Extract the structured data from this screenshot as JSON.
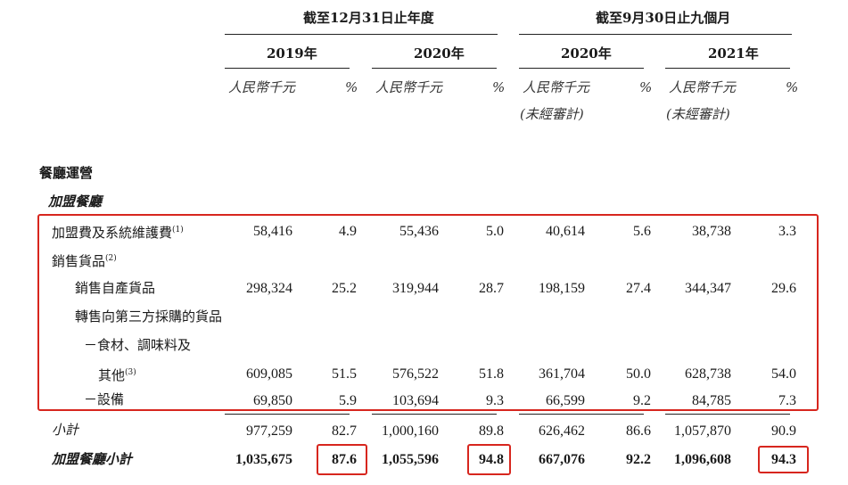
{
  "header": {
    "group1": "截至12月31日止年度",
    "group2": "截至9月30日止九個月",
    "years": [
      "2019年",
      "2020年",
      "2020年",
      "2021年"
    ],
    "unit_rmb": "人民幣千元",
    "unit_pct": "%",
    "unaudited": "(未經審計)"
  },
  "section": {
    "title": "餐廳運營",
    "subtitle": "加盟餐廳"
  },
  "rows": [
    {
      "label": "加盟費及系統維護費",
      "note": "(1)",
      "values": [
        "58,416",
        "4.9",
        "55,436",
        "5.0",
        "40,614",
        "5.6",
        "38,738",
        "3.3"
      ]
    },
    {
      "label": "銷售貨品",
      "note": "(2)",
      "values": []
    },
    {
      "label": "銷售自產貨品",
      "note": "",
      "values": [
        "298,324",
        "25.2",
        "319,944",
        "28.7",
        "198,159",
        "27.4",
        "344,347",
        "29.6"
      ]
    },
    {
      "label": "轉售向第三方採購的貨品",
      "note": "",
      "values": []
    },
    {
      "label": "－食材、調味料及",
      "note": "",
      "values": []
    },
    {
      "label": "其他",
      "note": "(3)",
      "values": [
        "609,085",
        "51.5",
        "576,522",
        "51.8",
        "361,704",
        "50.0",
        "628,738",
        "54.0"
      ]
    },
    {
      "label": "－設備",
      "note": "",
      "values": [
        "69,850",
        "5.9",
        "103,694",
        "9.3",
        "66,599",
        "9.2",
        "84,785",
        "7.3"
      ]
    },
    {
      "label": "小計",
      "note": "",
      "values": [
        "977,259",
        "82.7",
        "1,000,160",
        "89.8",
        "626,462",
        "86.6",
        "1,057,870",
        "90.9"
      ]
    },
    {
      "label": "加盟餐廳小計",
      "note": "",
      "values": [
        "1,035,675",
        "87.6",
        "1,055,596",
        "94.8",
        "667,076",
        "92.2",
        "1,096,608",
        "94.3"
      ]
    }
  ],
  "highlight_color": "#d7261e"
}
